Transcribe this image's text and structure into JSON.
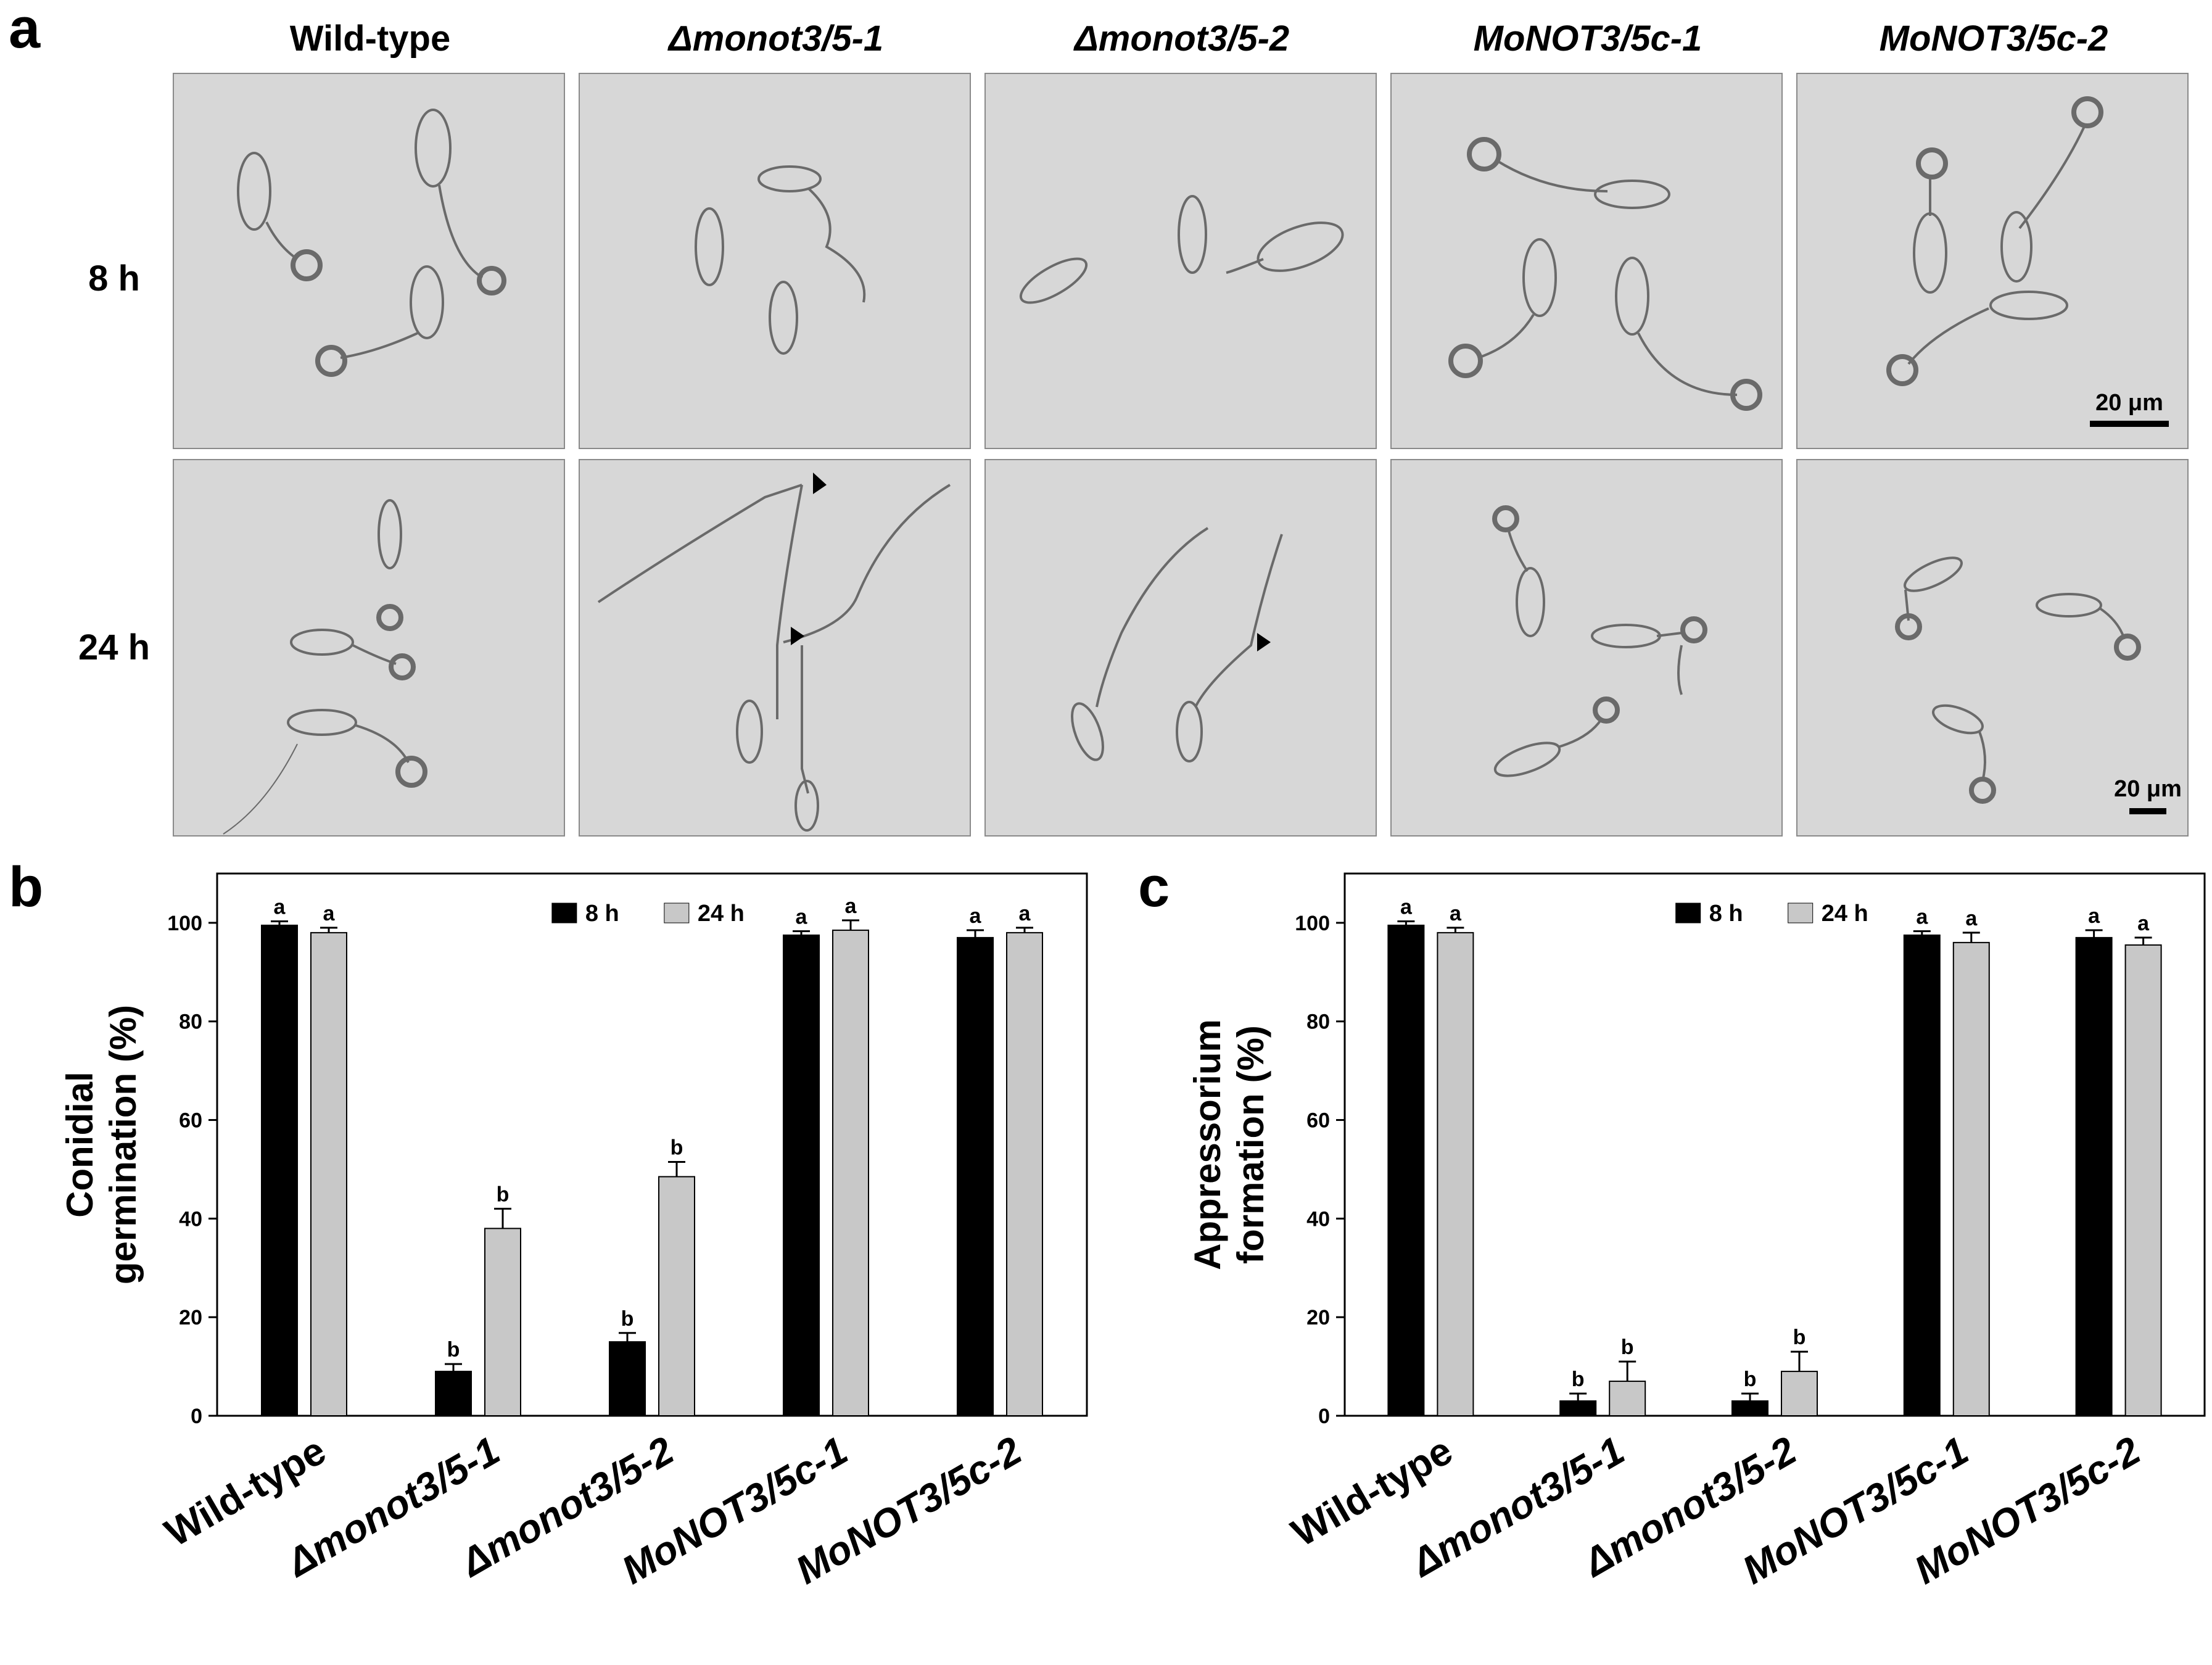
{
  "panel_labels": {
    "a": "a",
    "b": "b",
    "c": "c"
  },
  "panel_a": {
    "strains": [
      {
        "label": "Wild-type",
        "italic": false
      },
      {
        "label": "Δmonot3/5-1",
        "italic": true
      },
      {
        "label": "Δmonot3/5-2",
        "italic": true
      },
      {
        "label": "MoNOT3/5c-1",
        "italic": true
      },
      {
        "label": "MoNOT3/5c-2",
        "italic": true
      }
    ],
    "rows": [
      "8 h",
      "24 h"
    ],
    "scale_bar": "20 μm"
  },
  "colors": {
    "8 h": "#000000",
    "24 h": "#c8c8c8",
    "micrograph_bg": "#d7d7d7"
  },
  "chart_data": [
    {
      "type": "bar",
      "panel": "b",
      "ylabel": [
        "Conidial",
        "germination (%)"
      ],
      "categories": [
        "Wild-type",
        "Δmonot3/5-1",
        "Δmonot3/5-2",
        "MoNOT3/5c-1",
        "MoNOT3/5c-2"
      ],
      "ylim": [
        0,
        110
      ],
      "yticks": [
        0,
        20,
        40,
        60,
        80,
        100
      ],
      "legend": "top-center",
      "series": [
        {
          "name": "8 h",
          "values": [
            99.5,
            9,
            15,
            97.5,
            97
          ],
          "errors": [
            0.8,
            1.5,
            1.8,
            0.8,
            1.5
          ],
          "letters": [
            "a",
            "b",
            "b",
            "a",
            "a"
          ]
        },
        {
          "name": "24 h",
          "values": [
            98,
            38,
            48.5,
            98.5,
            98
          ],
          "errors": [
            1,
            4,
            3,
            2,
            1
          ],
          "letters": [
            "a",
            "b",
            "b",
            "a",
            "a"
          ]
        }
      ]
    },
    {
      "type": "bar",
      "panel": "c",
      "ylabel": [
        "Appressorium",
        "formation (%)"
      ],
      "categories": [
        "Wild-type",
        "Δmonot3/5-1",
        "Δmonot3/5-2",
        "MoNOT3/5c-1",
        "MoNOT3/5c-2"
      ],
      "ylim": [
        0,
        110
      ],
      "yticks": [
        0,
        20,
        40,
        60,
        80,
        100
      ],
      "legend": "top-center",
      "series": [
        {
          "name": "8 h",
          "values": [
            99.5,
            3,
            3,
            97.5,
            97
          ],
          "errors": [
            0.8,
            1.5,
            1.5,
            0.8,
            1.5
          ],
          "letters": [
            "a",
            "b",
            "b",
            "a",
            "a"
          ]
        },
        {
          "name": "24 h",
          "values": [
            98,
            7,
            9,
            96,
            95.5
          ],
          "errors": [
            1,
            4,
            4,
            2,
            1.5
          ],
          "letters": [
            "a",
            "b",
            "b",
            "a",
            "a"
          ]
        }
      ]
    }
  ]
}
